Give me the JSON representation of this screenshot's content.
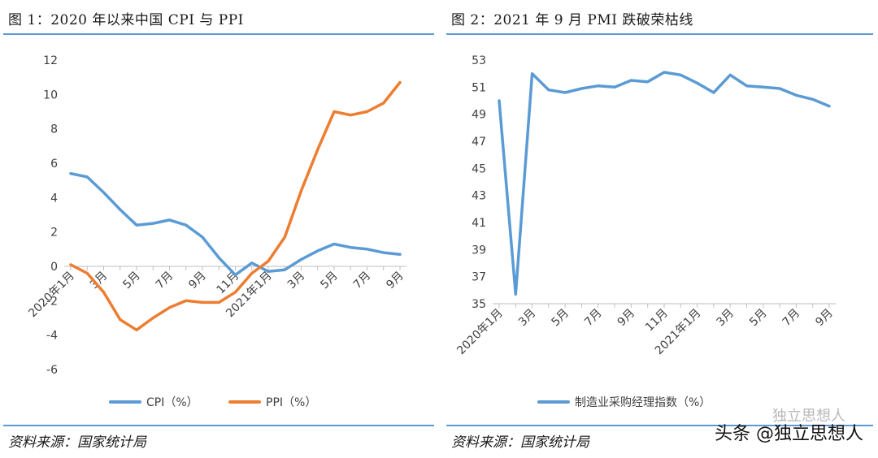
{
  "left": {
    "title": "图 1：2020 年以来中国 CPI 与 PPI",
    "source": "资料来源：国家统计局"
  },
  "right": {
    "title": "图 2：2021 年 9 月 PMI 跌破荣枯线",
    "source": "资料来源：国家统计局"
  },
  "watermark": {
    "main": "头条 @独立思想人",
    "ghost": "独立思想人"
  },
  "chart_data": [
    {
      "type": "line",
      "title": "图 1：2020 年以来中国 CPI 与 PPI",
      "categories": [
        "2020年1月",
        "2月",
        "3月",
        "4月",
        "5月",
        "6月",
        "7月",
        "8月",
        "9月",
        "10月",
        "11月",
        "12月",
        "2021年1月",
        "2月",
        "3月",
        "4月",
        "5月",
        "6月",
        "7月",
        "8月",
        "9月"
      ],
      "tick_labels": [
        "2020年1月",
        "3月",
        "5月",
        "7月",
        "9月",
        "11月",
        "2021年1月",
        "3月",
        "5月",
        "7月",
        "9月"
      ],
      "ylim": [
        -6,
        12
      ],
      "yticks": [
        -6,
        -4,
        -2,
        0,
        2,
        4,
        6,
        8,
        10,
        12
      ],
      "series": [
        {
          "name": "CPI（%）",
          "color": "#5b9bd5",
          "values": [
            5.4,
            5.2,
            4.3,
            3.3,
            2.4,
            2.5,
            2.7,
            2.4,
            1.7,
            0.5,
            -0.5,
            0.2,
            -0.3,
            -0.2,
            0.4,
            0.9,
            1.3,
            1.1,
            1.0,
            0.8,
            0.7
          ]
        },
        {
          "name": "PPI（%）",
          "color": "#ed7d31",
          "values": [
            0.1,
            -0.4,
            -1.5,
            -3.1,
            -3.7,
            -3.0,
            -2.4,
            -2.0,
            -2.1,
            -2.1,
            -1.5,
            -0.4,
            0.3,
            1.7,
            4.4,
            6.8,
            9.0,
            8.8,
            9.0,
            9.5,
            10.7
          ]
        }
      ],
      "legend_position": "bottom",
      "grid": false
    },
    {
      "type": "line",
      "title": "图 2：2021 年 9 月 PMI 跌破荣枯线",
      "categories": [
        "2020年1月",
        "2月",
        "3月",
        "4月",
        "5月",
        "6月",
        "7月",
        "8月",
        "9月",
        "10月",
        "11月",
        "12月",
        "2021年1月",
        "2月",
        "3月",
        "4月",
        "5月",
        "6月",
        "7月",
        "8月",
        "9月"
      ],
      "tick_labels": [
        "2020年1月",
        "3月",
        "5月",
        "7月",
        "9月",
        "11月",
        "2021年1月",
        "3月",
        "5月",
        "7月",
        "9月"
      ],
      "ylim": [
        35,
        53
      ],
      "yticks": [
        35,
        37,
        39,
        41,
        43,
        45,
        47,
        49,
        51,
        53
      ],
      "series": [
        {
          "name": "制造业采购经理指数（%）",
          "color": "#5b9bd5",
          "values": [
            50.0,
            35.7,
            52.0,
            50.8,
            50.6,
            50.9,
            51.1,
            51.0,
            51.5,
            51.4,
            52.1,
            51.9,
            51.3,
            50.6,
            51.9,
            51.1,
            51.0,
            50.9,
            50.4,
            50.1,
            49.6
          ]
        }
      ],
      "legend_position": "bottom",
      "grid": false
    }
  ]
}
